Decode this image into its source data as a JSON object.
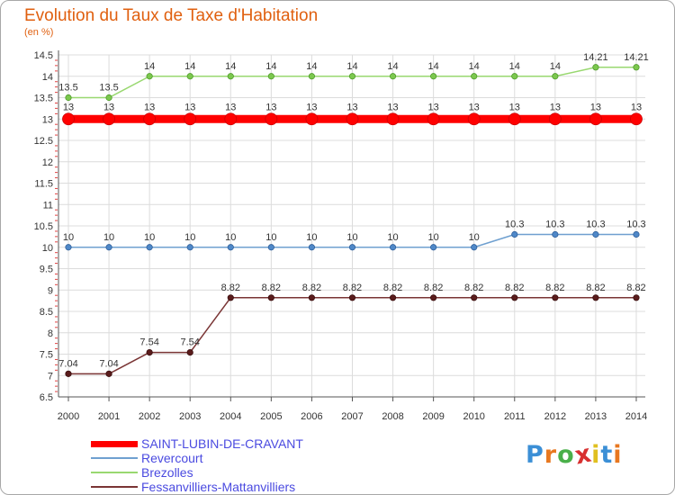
{
  "chart_data": {
    "type": "line",
    "title": "Evolution du Taux de Taxe d'Habitation",
    "subtitle": "(en %)",
    "xlabel": "",
    "ylabel": "",
    "x": [
      "2000",
      "2001",
      "2002",
      "2003",
      "2004",
      "2005",
      "2006",
      "2007",
      "2008",
      "2009",
      "2010",
      "2011",
      "2012",
      "2013",
      "2014"
    ],
    "yticks": [
      "6.5",
      "7",
      "7.5",
      "8",
      "8.5",
      "9",
      "9.5",
      "10",
      "10.5",
      "11",
      "11.5",
      "12",
      "12.5",
      "13",
      "13.5",
      "14",
      "14.5"
    ],
    "ylim": [
      6.5,
      14.5
    ],
    "grid": true,
    "legend_position": "bottom-left",
    "series": [
      {
        "name": "SAINT-LUBIN-DE-CRAVANT",
        "color": "#ff0000",
        "values": [
          13,
          13,
          13,
          13,
          13,
          13,
          13,
          13,
          13,
          13,
          13,
          13,
          13,
          13,
          13
        ],
        "labels": [
          "13",
          "13",
          "13",
          "13",
          "13",
          "13",
          "13",
          "13",
          "13",
          "13",
          "13",
          "13",
          "13",
          "13",
          "13"
        ]
      },
      {
        "name": "Revercourt",
        "color": "#6fa0d0",
        "values": [
          10,
          10,
          10,
          10,
          10,
          10,
          10,
          10,
          10,
          10,
          10,
          10.3,
          10.3,
          10.3,
          10.3
        ],
        "labels": [
          "10",
          "10",
          "10",
          "10",
          "10",
          "10",
          "10",
          "10",
          "10",
          "10",
          "10",
          "10.3",
          "10.3",
          "10.3",
          "10.3"
        ]
      },
      {
        "name": "Brezolles",
        "color": "#99d870",
        "values": [
          13.5,
          13.5,
          14,
          14,
          14,
          14,
          14,
          14,
          14,
          14,
          14,
          14,
          14,
          14.21,
          14.21
        ],
        "labels": [
          "13.5",
          "13.5",
          "14",
          "14",
          "14",
          "14",
          "14",
          "14",
          "14",
          "14",
          "14",
          "14",
          "14",
          "14.21",
          "14.21"
        ]
      },
      {
        "name": "Fessanvilliers-Mattanvilliers",
        "color": "#7a3535",
        "values": [
          7.04,
          7.04,
          7.54,
          7.54,
          8.82,
          8.82,
          8.82,
          8.82,
          8.82,
          8.82,
          8.82,
          8.82,
          8.82,
          8.82,
          8.82
        ],
        "labels": [
          "7.04",
          "7.04",
          "7.54",
          "7.54",
          "8.82",
          "8.82",
          "8.82",
          "8.82",
          "8.82",
          "8.82",
          "8.82",
          "8.82",
          "8.82",
          "8.82",
          "8.82"
        ]
      }
    ]
  },
  "logo": {
    "letters": [
      "P",
      "r",
      "o",
      "x",
      "i",
      "t",
      "i"
    ],
    "colors": [
      "#3b8fd6",
      "#e87820",
      "#4ab04a",
      "#d83030",
      "#e0c020",
      "#3b8fd6",
      "#e87820"
    ]
  }
}
